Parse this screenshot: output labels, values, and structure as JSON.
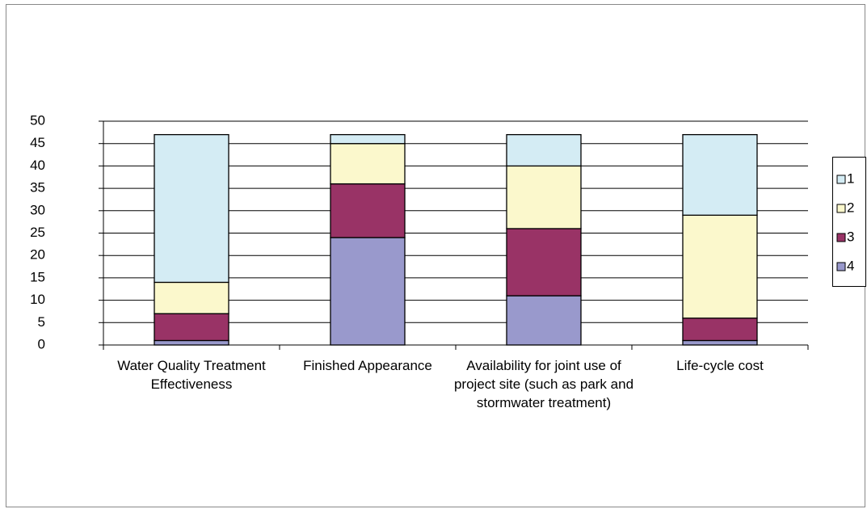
{
  "chart_data": {
    "type": "bar",
    "stacked": true,
    "categories": [
      "Water Quality Treatment Effectiveness",
      "Finished Appearance",
      "Availability for joint use of project site (such as park and stormwater treatment)",
      "Life-cycle cost"
    ],
    "series": [
      {
        "name": "1",
        "color": "#d4ecf4",
        "values": [
          33,
          2,
          7,
          18
        ]
      },
      {
        "name": "2",
        "color": "#fbf8cc",
        "values": [
          7,
          9,
          14,
          23
        ]
      },
      {
        "name": "3",
        "color": "#993366",
        "values": [
          6,
          12,
          15,
          5
        ]
      },
      {
        "name": "4",
        "color": "#9999cc",
        "values": [
          1,
          24,
          11,
          1
        ]
      }
    ],
    "ylim": [
      0,
      50
    ],
    "yticks": [
      0,
      5,
      10,
      15,
      20,
      25,
      30,
      35,
      40,
      45,
      50
    ],
    "grid": true,
    "legend": "right"
  }
}
